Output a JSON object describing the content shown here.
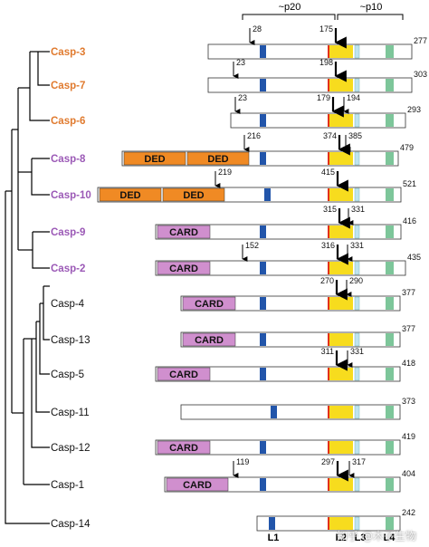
{
  "header": {
    "p20": "~p20",
    "p10": "~p10"
  },
  "footer_labels": [
    "L1",
    "L2",
    "L3",
    "L4"
  ],
  "watermark": "知乎 @木子生物",
  "colors": {
    "orange_label": "#e07a2e",
    "purple_label": "#9b59b6",
    "ded": "#f08a24",
    "card": "#d08fce",
    "blue": "#2255aa",
    "yellow": "#f7dc1e",
    "red_line": "#e2301a",
    "light_blue": "#bfe3ef",
    "green": "#7dc69a"
  },
  "caspases": [
    {
      "name": "Casp-3",
      "color": "orange",
      "length": "277",
      "domains": [],
      "sites": [
        {
          "label": "28",
          "type": "thin"
        },
        {
          "label": "175",
          "type": "bold"
        }
      ]
    },
    {
      "name": "Casp-7",
      "color": "orange",
      "length": "303",
      "domains": [],
      "sites": [
        {
          "label": "23",
          "type": "thin"
        },
        {
          "label": "198",
          "type": "bold"
        }
      ]
    },
    {
      "name": "Casp-6",
      "color": "orange",
      "length": "293",
      "domains": [],
      "sites": [
        {
          "label": "23",
          "type": "thin"
        },
        {
          "label": "179",
          "type": "bold"
        },
        {
          "label": "194",
          "type": "thin"
        }
      ]
    },
    {
      "name": "Casp-8",
      "color": "purple",
      "length": "479",
      "domains": [
        "DED",
        "DED"
      ],
      "sites": [
        {
          "label": "216",
          "type": "thin"
        },
        {
          "label": "374",
          "type": "bold"
        },
        {
          "label": "385",
          "type": "thin"
        }
      ]
    },
    {
      "name": "Casp-10",
      "color": "purple",
      "length": "521",
      "domains": [
        "DED",
        "DED"
      ],
      "sites": [
        {
          "label": "219",
          "type": "thin"
        },
        {
          "label": "415",
          "type": "bold"
        }
      ]
    },
    {
      "name": "Casp-9",
      "color": "purple",
      "length": "416",
      "domains": [
        "CARD"
      ],
      "sites": [
        {
          "label": "315",
          "type": "bold"
        },
        {
          "label": "331",
          "type": "thin"
        }
      ]
    },
    {
      "name": "Casp-2",
      "color": "purple",
      "length": "435",
      "domains": [
        "CARD"
      ],
      "sites": [
        {
          "label": "152",
          "type": "thin"
        },
        {
          "label": "316",
          "type": "bold"
        },
        {
          "label": "331",
          "type": "thin"
        }
      ]
    },
    {
      "name": "Casp-4",
      "color": "black",
      "length": "377",
      "domains": [
        "CARD"
      ],
      "sites": [
        {
          "label": "270",
          "type": "bold"
        },
        {
          "label": "290",
          "type": "thin"
        }
      ]
    },
    {
      "name": "Casp-13",
      "color": "black",
      "length": "377",
      "domains": [
        "CARD"
      ],
      "sites": []
    },
    {
      "name": "Casp-5",
      "color": "black",
      "length": "418",
      "domains": [
        "CARD"
      ],
      "sites": [
        {
          "label": "311",
          "type": "bold"
        },
        {
          "label": "331",
          "type": "thin"
        }
      ]
    },
    {
      "name": "Casp-11",
      "color": "black",
      "length": "373",
      "domains": [],
      "sites": []
    },
    {
      "name": "Casp-12",
      "color": "black",
      "length": "419",
      "domains": [
        "CARD"
      ],
      "sites": []
    },
    {
      "name": "Casp-1",
      "color": "black",
      "length": "404",
      "domains": [
        "CARD"
      ],
      "sites": [
        {
          "label": "119",
          "type": "thin"
        },
        {
          "label": "297",
          "type": "bold"
        },
        {
          "label": "317",
          "type": "thin"
        }
      ]
    },
    {
      "name": "Casp-14",
      "color": "black",
      "length": "242",
      "domains": [],
      "sites": []
    }
  ]
}
